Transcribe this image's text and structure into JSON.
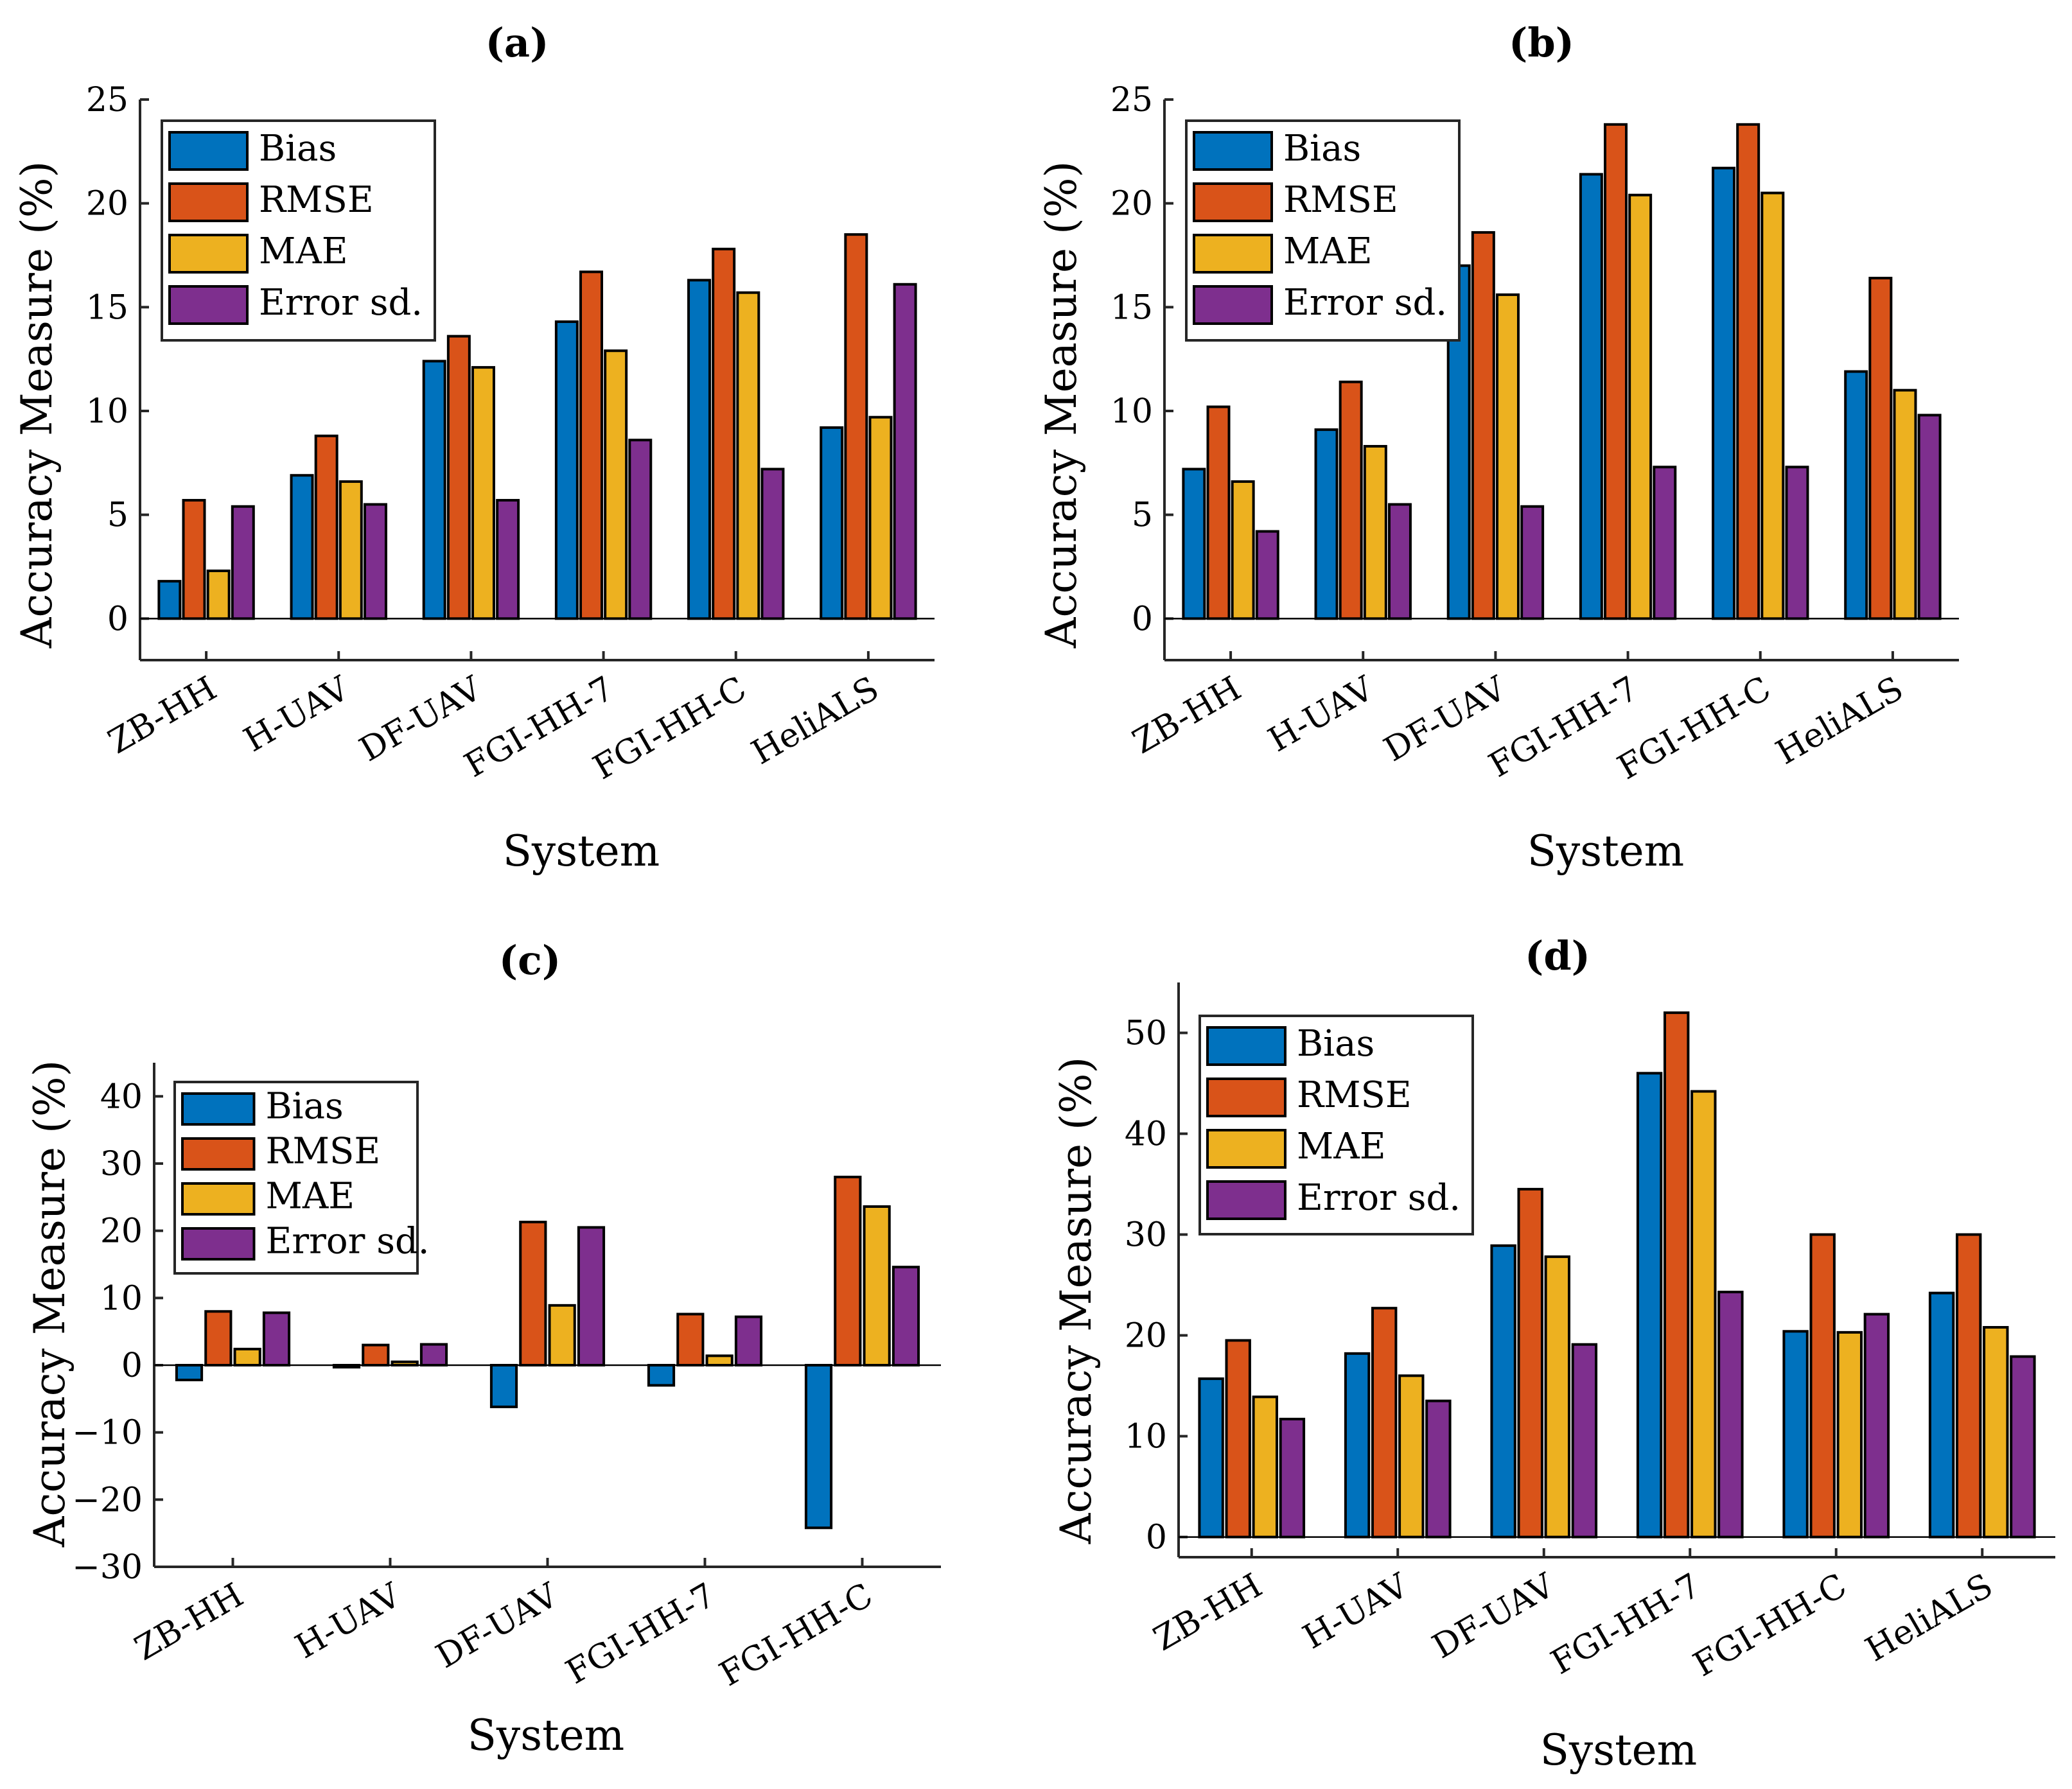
{
  "figure": {
    "colors": {
      "Bias": "#0072BD",
      "RMSE": "#D95319",
      "MAE": "#EDB120",
      "Error sd.": "#7E2F8E"
    }
  },
  "chart_data": [
    {
      "type": "bar",
      "title": "(a)",
      "xlabel": "System",
      "ylabel": "Accuracy Measure (%)",
      "ylim": [
        -2,
        25
      ],
      "yticks": [
        0,
        5,
        10,
        15,
        20,
        25
      ],
      "categories": [
        "ZB-HH",
        "H-UAV",
        "DF-UAV",
        "FGI-HH-7",
        "FGI-HH-C",
        "HeliALS"
      ],
      "series": [
        {
          "name": "Bias",
          "values": [
            1.8,
            6.9,
            12.4,
            14.3,
            16.3,
            9.2
          ]
        },
        {
          "name": "RMSE",
          "values": [
            5.7,
            8.8,
            13.6,
            16.7,
            17.8,
            18.5
          ]
        },
        {
          "name": "MAE",
          "values": [
            2.3,
            6.6,
            12.1,
            12.9,
            15.7,
            9.7
          ]
        },
        {
          "name": "Error sd.",
          "values": [
            5.4,
            5.5,
            5.7,
            8.6,
            7.2,
            16.1
          ]
        }
      ],
      "legend": "top-left"
    },
    {
      "type": "bar",
      "title": "(b)",
      "xlabel": "System",
      "ylabel": "Accuracy Measure (%)",
      "ylim": [
        -2,
        25
      ],
      "yticks": [
        0,
        5,
        10,
        15,
        20,
        25
      ],
      "categories": [
        "ZB-HH",
        "H-UAV",
        "DF-UAV",
        "FGI-HH-7",
        "FGI-HH-C",
        "HeliALS"
      ],
      "series": [
        {
          "name": "Bias",
          "values": [
            7.2,
            9.1,
            17.0,
            21.4,
            21.7,
            11.9
          ]
        },
        {
          "name": "RMSE",
          "values": [
            10.2,
            11.4,
            18.6,
            23.8,
            23.8,
            16.4
          ]
        },
        {
          "name": "MAE",
          "values": [
            6.6,
            8.3,
            15.6,
            20.4,
            20.5,
            11.0
          ]
        },
        {
          "name": "Error sd.",
          "values": [
            4.2,
            5.5,
            5.4,
            7.3,
            7.3,
            9.8
          ]
        }
      ],
      "legend": "top-left"
    },
    {
      "type": "bar",
      "title": "(c)",
      "xlabel": "System",
      "ylabel": "Accuracy Measure (%)",
      "ylim": [
        -30,
        45
      ],
      "yticks": [
        -30,
        -20,
        -10,
        0,
        10,
        20,
        30,
        40
      ],
      "categories": [
        "ZB-HH",
        "H-UAV",
        "DF-UAV",
        "FGI-HH-7",
        "FGI-HH-C"
      ],
      "series": [
        {
          "name": "Bias",
          "values": [
            -2.2,
            -0.3,
            -6.2,
            -3.0,
            -24.2
          ]
        },
        {
          "name": "RMSE",
          "values": [
            8.0,
            3.0,
            21.3,
            7.6,
            28.0
          ]
        },
        {
          "name": "MAE",
          "values": [
            2.4,
            0.5,
            8.9,
            1.4,
            23.6
          ]
        },
        {
          "name": "Error sd.",
          "values": [
            7.8,
            3.1,
            20.5,
            7.2,
            14.6
          ]
        }
      ],
      "legend": "top-left"
    },
    {
      "type": "bar",
      "title": "(d)",
      "xlabel": "System",
      "ylabel": "Accuracy Measure (%)",
      "ylim": [
        -2,
        55
      ],
      "yticks": [
        0,
        10,
        20,
        30,
        40,
        50
      ],
      "categories": [
        "ZB-HH",
        "H-UAV",
        "DF-UAV",
        "FGI-HH-7",
        "FGI-HH-C",
        "HeliALS"
      ],
      "series": [
        {
          "name": "Bias",
          "values": [
            15.7,
            18.2,
            28.9,
            46.0,
            20.4,
            24.2
          ]
        },
        {
          "name": "RMSE",
          "values": [
            19.5,
            22.7,
            34.5,
            52.0,
            30.0,
            30.0
          ]
        },
        {
          "name": "MAE",
          "values": [
            13.9,
            16.0,
            27.8,
            44.2,
            20.3,
            20.8
          ]
        },
        {
          "name": "Error sd.",
          "values": [
            11.7,
            13.5,
            19.1,
            24.3,
            22.1,
            17.9
          ]
        }
      ],
      "legend": "top-left"
    }
  ]
}
